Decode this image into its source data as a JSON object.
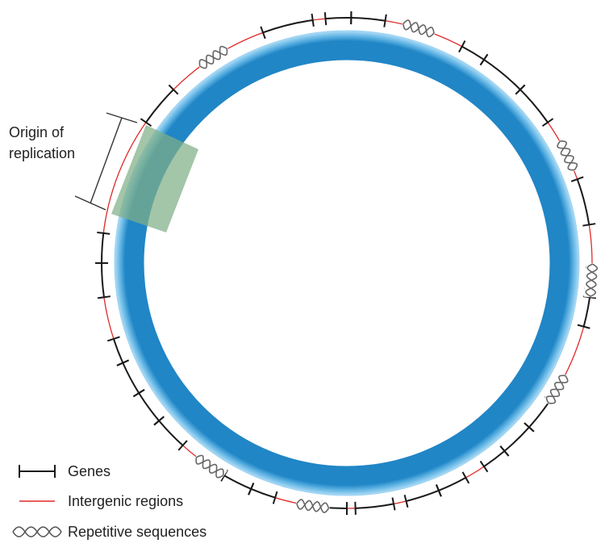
{
  "origin_label": {
    "line1": "Origin of",
    "line2": "replication"
  },
  "legend": [
    {
      "key": "genes",
      "label": "Genes",
      "symbol": "gene-bar-icon"
    },
    {
      "key": "intergenic",
      "label": "Intergenic regions",
      "symbol": "red-line-icon"
    },
    {
      "key": "repetitive",
      "label": "Repetitive sequences",
      "symbol": "dna-helix-icon"
    }
  ],
  "colors": {
    "chromosome_outer": "#1b7fc0",
    "chromosome_inner": "#9fd3f2",
    "genes": "#1a1a1a",
    "intergenic": "#e02a2a",
    "helix": "#666666",
    "origin_highlight": "#7fae86",
    "text": "#222222"
  }
}
